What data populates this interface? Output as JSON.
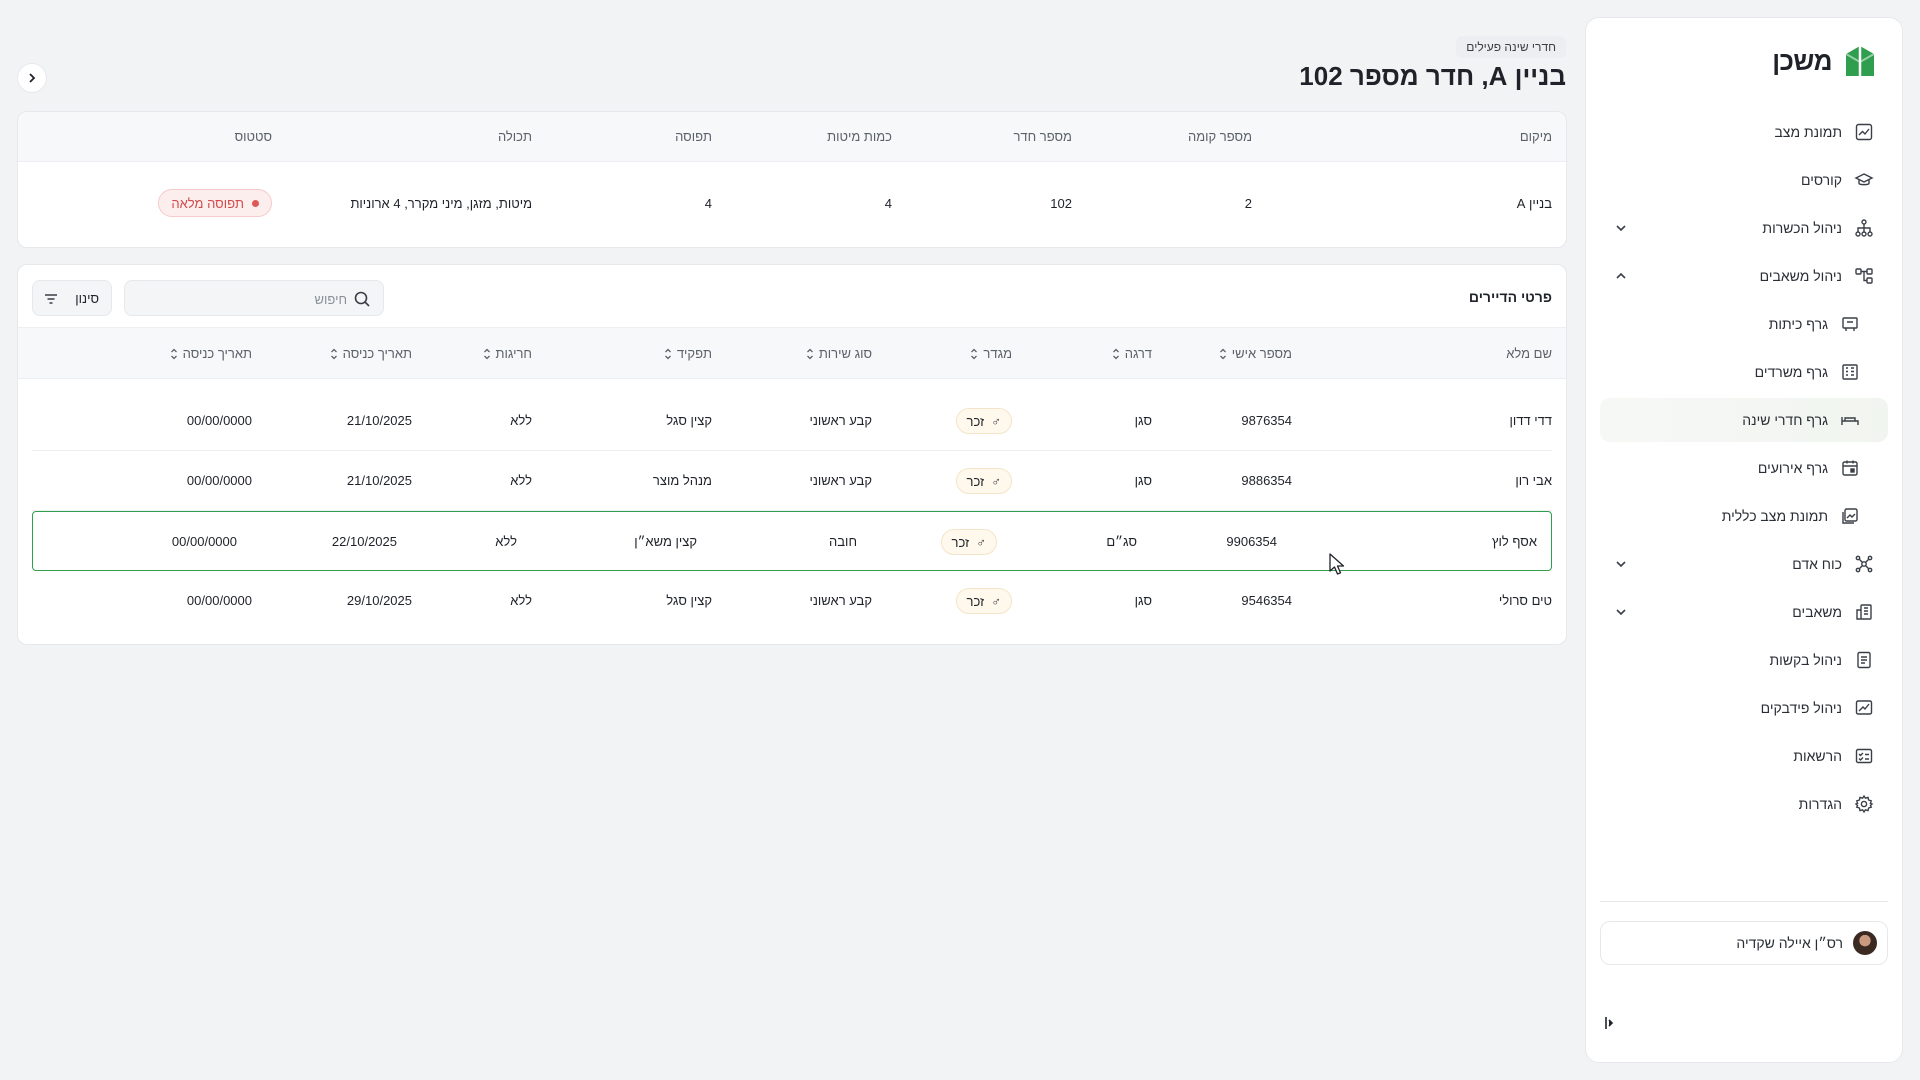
{
  "app": {
    "name": "משכן",
    "brand_color": "#2f9e4f"
  },
  "sidebar": {
    "items": [
      {
        "label": "תמונת מצב",
        "icon": "chart-line-icon"
      },
      {
        "label": "קורסים",
        "icon": "graduation-cap-icon"
      },
      {
        "label": "ניהול הכשרות",
        "icon": "hierarchy-icon",
        "expandable": true,
        "expanded": false
      },
      {
        "label": "ניהול משאבים",
        "icon": "flow-nodes-icon",
        "expandable": true,
        "expanded": true
      },
      {
        "label": "גרף כיתות",
        "icon": "classroom-icon",
        "sub": true
      },
      {
        "label": "גרף משרדים",
        "icon": "office-building-icon",
        "sub": true
      },
      {
        "label": "גרף חדרי שינה",
        "icon": "bed-icon",
        "sub": true,
        "active": true
      },
      {
        "label": "גרף אירועים",
        "icon": "calendar-icon",
        "sub": true
      },
      {
        "label": "תמונת מצב כללית",
        "icon": "gallery-icon",
        "sub": true
      },
      {
        "label": "כוח אדם",
        "icon": "people-network-icon",
        "expandable": true,
        "expanded": false
      },
      {
        "label": "משאבים",
        "icon": "buildings-icon",
        "expandable": true,
        "expanded": false
      },
      {
        "label": "ניהול בקשות",
        "icon": "document-list-icon"
      },
      {
        "label": "ניהול פידבקים",
        "icon": "feedback-chart-icon"
      },
      {
        "label": "הרשאות",
        "icon": "checklist-icon"
      },
      {
        "label": "הגדרות",
        "icon": "gear-icon"
      }
    ],
    "user": {
      "name": "רס״ן איילה שקדיה"
    }
  },
  "header": {
    "breadcrumb": "חדרי שינה פעילים",
    "title": "בניין A, חדר מספר 102"
  },
  "room": {
    "columns": [
      "מיקום",
      "מספר קומה",
      "מספר חדר",
      "כמות מיטות",
      "תפוסה",
      "תכולה",
      "סטטוס"
    ],
    "values": {
      "location": "בניין A",
      "floor": "2",
      "room_number": "102",
      "beds": "4",
      "occupancy": "4",
      "contents": "מיטות, מזגן, מיני מקרר, 4 ארוניות",
      "status": "תפוסה מלאה"
    },
    "status_color": "#e05757"
  },
  "residents": {
    "title": "פרטי הדיירים",
    "search_placeholder": "חיפוש",
    "filter_label": "סינון",
    "columns": [
      "שם מלא",
      "מספר אישי",
      "דרגה",
      "מגדר",
      "סוג שירות",
      "תפקיד",
      "חריגות",
      "תאריך כניסה",
      "תאריך כניסה"
    ],
    "rows": [
      {
        "name": "דדי דדון",
        "id": "9876354",
        "rank": "סגן",
        "gender": "זכר",
        "service": "קבע ראשוני",
        "role": "קצין סגל",
        "exceptions": "ללא",
        "entry": "21/10/2025",
        "entry2": "00/00/0000"
      },
      {
        "name": "אבי רון",
        "id": "9886354",
        "rank": "סגן",
        "gender": "זכר",
        "service": "קבע ראשוני",
        "role": "מנהל מוצר",
        "exceptions": "ללא",
        "entry": "21/10/2025",
        "entry2": "00/00/0000"
      },
      {
        "name": "אסף לוץ",
        "id": "9906354",
        "rank": "סג״ם",
        "gender": "זכר",
        "service": "חובה",
        "role": "קצין משא״ן",
        "exceptions": "ללא",
        "entry": "22/10/2025",
        "entry2": "00/00/0000",
        "selected": true
      },
      {
        "name": "טים סרולי",
        "id": "9546354",
        "rank": "סגן",
        "gender": "זכר",
        "service": "קבע ראשוני",
        "role": "קצין סגל",
        "exceptions": "ללא",
        "entry": "29/10/2025",
        "entry2": "00/00/0000"
      }
    ]
  }
}
